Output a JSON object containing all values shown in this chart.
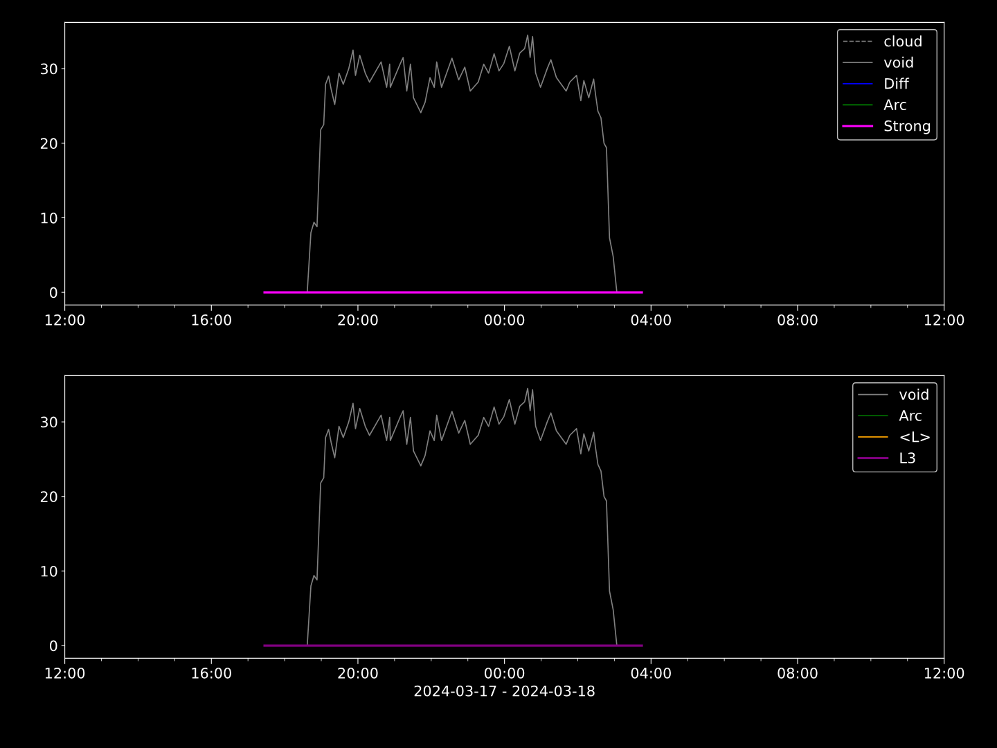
{
  "chart_data": [
    {
      "type": "line",
      "xlim": [
        "2024-03-17T12:00",
        "2024-03-18T12:00"
      ],
      "ylim": [
        -1.7,
        36.2
      ],
      "yticks": [
        0,
        10,
        20,
        30
      ],
      "xticks": [
        {
          "value": "2024-03-17T12:00",
          "label": "12:00"
        },
        {
          "value": "2024-03-17T13:00",
          "label": null
        },
        {
          "value": "2024-03-17T14:00",
          "label": null
        },
        {
          "value": "2024-03-17T15:00",
          "label": null
        },
        {
          "value": "2024-03-17T16:00",
          "label": "16:00"
        },
        {
          "value": "2024-03-17T17:00",
          "label": null
        },
        {
          "value": "2024-03-17T18:00",
          "label": null
        },
        {
          "value": "2024-03-17T19:00",
          "label": null
        },
        {
          "value": "2024-03-17T20:00",
          "label": "20:00"
        },
        {
          "value": "2024-03-17T21:00",
          "label": null
        },
        {
          "value": "2024-03-17T22:00",
          "label": null
        },
        {
          "value": "2024-03-17T23:00",
          "label": null
        },
        {
          "value": "2024-03-18T00:00",
          "label": "00:00"
        },
        {
          "value": "2024-03-18T01:00",
          "label": null
        },
        {
          "value": "2024-03-18T02:00",
          "label": null
        },
        {
          "value": "2024-03-18T03:00",
          "label": null
        },
        {
          "value": "2024-03-18T04:00",
          "label": "04:00"
        },
        {
          "value": "2024-03-18T05:00",
          "label": null
        },
        {
          "value": "2024-03-18T06:00",
          "label": null
        },
        {
          "value": "2024-03-18T07:00",
          "label": null
        },
        {
          "value": "2024-03-18T08:00",
          "label": "08:00"
        },
        {
          "value": "2024-03-18T09:00",
          "label": null
        },
        {
          "value": "2024-03-18T10:00",
          "label": null
        },
        {
          "value": "2024-03-18T11:00",
          "label": null
        },
        {
          "value": "2024-03-18T12:00",
          "label": "12:00"
        }
      ],
      "legend": "top right",
      "series": [
        {
          "name": "cloud",
          "color": "#808080",
          "line_style": "dashed"
        },
        {
          "name": "void",
          "color": "#808080",
          "x": [
            "2024-03-17T18:37",
            "2024-03-17T18:43",
            "2024-03-17T18:48",
            "2024-03-17T18:53",
            "2024-03-17T18:59",
            "2024-03-17T19:04",
            "2024-03-17T19:07",
            "2024-03-17T19:12",
            "2024-03-17T19:16",
            "2024-03-17T19:22",
            "2024-03-17T19:29",
            "2024-03-17T19:36",
            "2024-03-17T19:45",
            "2024-03-17T19:52",
            "2024-03-17T19:56",
            "2024-03-17T20:03",
            "2024-03-17T20:12",
            "2024-03-17T20:19",
            "2024-03-17T20:38",
            "2024-03-17T20:47",
            "2024-03-17T20:52",
            "2024-03-17T20:53",
            "2024-03-17T21:09",
            "2024-03-17T21:14",
            "2024-03-17T21:20",
            "2024-03-17T21:26",
            "2024-03-17T21:31",
            "2024-03-17T21:43",
            "2024-03-17T21:50",
            "2024-03-17T21:58",
            "2024-03-17T22:05",
            "2024-03-17T22:09",
            "2024-03-17T22:17",
            "2024-03-17T22:34",
            "2024-03-17T22:45",
            "2024-03-17T22:55",
            "2024-03-17T23:04",
            "2024-03-17T23:17",
            "2024-03-17T23:26",
            "2024-03-17T23:34",
            "2024-03-17T23:43",
            "2024-03-17T23:51",
            "2024-03-17T23:59",
            "2024-03-18T00:08",
            "2024-03-18T00:17",
            "2024-03-18T00:25",
            "2024-03-18T00:33",
            "2024-03-18T00:38",
            "2024-03-18T00:42",
            "2024-03-18T00:46",
            "2024-03-18T00:51",
            "2024-03-18T00:59",
            "2024-03-18T01:10",
            "2024-03-18T01:16",
            "2024-03-18T01:25",
            "2024-03-18T01:41",
            "2024-03-18T01:47",
            "2024-03-18T01:58",
            "2024-03-18T02:05",
            "2024-03-18T02:10",
            "2024-03-18T02:18",
            "2024-03-18T02:26",
            "2024-03-18T02:29",
            "2024-03-18T02:33",
            "2024-03-18T02:38",
            "2024-03-18T02:43",
            "2024-03-18T02:47",
            "2024-03-18T02:52",
            "2024-03-18T02:58",
            "2024-03-18T03:04"
          ],
          "values": [
            0,
            8.0,
            9.4,
            8.8,
            21.8,
            22.5,
            27.9,
            29.0,
            27.3,
            25.2,
            29.4,
            27.9,
            30.0,
            32.5,
            29.1,
            31.8,
            29.4,
            28.2,
            30.9,
            27.5,
            30.6,
            27.5,
            30.6,
            31.5,
            27.0,
            30.6,
            26.1,
            24.1,
            25.5,
            28.8,
            27.5,
            30.9,
            27.5,
            31.4,
            28.5,
            30.2,
            27.0,
            28.2,
            30.6,
            29.4,
            32.0,
            29.7,
            30.7,
            33.0,
            29.7,
            32.1,
            32.7,
            34.5,
            31.5,
            34.3,
            29.4,
            27.5,
            30.0,
            31.2,
            28.8,
            27.0,
            28.2,
            29.1,
            25.7,
            28.4,
            26.1,
            28.6,
            26.6,
            24.3,
            23.4,
            20.0,
            19.4,
            7.3,
            4.8,
            0
          ]
        },
        {
          "name": "Diff",
          "color": "#0000ff"
        },
        {
          "name": "Arc",
          "color": "#008000"
        },
        {
          "name": "Strong",
          "color": "#ff00ff",
          "x": [
            "2024-03-17T17:27",
            "2024-03-18T03:45"
          ],
          "values": [
            0,
            0
          ]
        }
      ]
    },
    {
      "type": "line",
      "xlim": [
        "2024-03-17T12:00",
        "2024-03-18T12:00"
      ],
      "ylim": [
        -1.7,
        36.2
      ],
      "yticks": [
        0,
        10,
        20,
        30
      ],
      "xlabel": "2024-03-17 - 2024-03-18",
      "xticks": [
        {
          "value": "2024-03-17T12:00",
          "label": "12:00"
        },
        {
          "value": "2024-03-17T13:00",
          "label": null
        },
        {
          "value": "2024-03-17T14:00",
          "label": null
        },
        {
          "value": "2024-03-17T15:00",
          "label": null
        },
        {
          "value": "2024-03-17T16:00",
          "label": "16:00"
        },
        {
          "value": "2024-03-17T17:00",
          "label": null
        },
        {
          "value": "2024-03-17T18:00",
          "label": null
        },
        {
          "value": "2024-03-17T19:00",
          "label": null
        },
        {
          "value": "2024-03-17T20:00",
          "label": "20:00"
        },
        {
          "value": "2024-03-17T21:00",
          "label": null
        },
        {
          "value": "2024-03-17T22:00",
          "label": null
        },
        {
          "value": "2024-03-17T23:00",
          "label": null
        },
        {
          "value": "2024-03-18T00:00",
          "label": "00:00"
        },
        {
          "value": "2024-03-18T01:00",
          "label": null
        },
        {
          "value": "2024-03-18T02:00",
          "label": null
        },
        {
          "value": "2024-03-18T03:00",
          "label": null
        },
        {
          "value": "2024-03-18T04:00",
          "label": "04:00"
        },
        {
          "value": "2024-03-18T05:00",
          "label": null
        },
        {
          "value": "2024-03-18T06:00",
          "label": null
        },
        {
          "value": "2024-03-18T07:00",
          "label": null
        },
        {
          "value": "2024-03-18T08:00",
          "label": "08:00"
        },
        {
          "value": "2024-03-18T09:00",
          "label": null
        },
        {
          "value": "2024-03-18T10:00",
          "label": null
        },
        {
          "value": "2024-03-18T11:00",
          "label": null
        },
        {
          "value": "2024-03-18T12:00",
          "label": "12:00"
        }
      ],
      "legend": "top right",
      "series": [
        {
          "name": "void",
          "color": "#808080",
          "x": [
            "2024-03-17T18:37",
            "2024-03-17T18:43",
            "2024-03-17T18:48",
            "2024-03-17T18:53",
            "2024-03-17T18:59",
            "2024-03-17T19:04",
            "2024-03-17T19:07",
            "2024-03-17T19:12",
            "2024-03-17T19:16",
            "2024-03-17T19:22",
            "2024-03-17T19:29",
            "2024-03-17T19:36",
            "2024-03-17T19:45",
            "2024-03-17T19:52",
            "2024-03-17T19:56",
            "2024-03-17T20:03",
            "2024-03-17T20:12",
            "2024-03-17T20:19",
            "2024-03-17T20:38",
            "2024-03-17T20:47",
            "2024-03-17T20:52",
            "2024-03-17T20:53",
            "2024-03-17T21:09",
            "2024-03-17T21:14",
            "2024-03-17T21:20",
            "2024-03-17T21:26",
            "2024-03-17T21:31",
            "2024-03-17T21:43",
            "2024-03-17T21:50",
            "2024-03-17T21:58",
            "2024-03-17T22:05",
            "2024-03-17T22:09",
            "2024-03-17T22:17",
            "2024-03-17T22:34",
            "2024-03-17T22:45",
            "2024-03-17T22:55",
            "2024-03-17T23:04",
            "2024-03-17T23:17",
            "2024-03-17T23:26",
            "2024-03-17T23:34",
            "2024-03-17T23:43",
            "2024-03-17T23:51",
            "2024-03-17T23:59",
            "2024-03-18T00:08",
            "2024-03-18T00:17",
            "2024-03-18T00:25",
            "2024-03-18T00:33",
            "2024-03-18T00:38",
            "2024-03-18T00:42",
            "2024-03-18T00:46",
            "2024-03-18T00:51",
            "2024-03-18T00:59",
            "2024-03-18T01:10",
            "2024-03-18T01:16",
            "2024-03-18T01:25",
            "2024-03-18T01:41",
            "2024-03-18T01:47",
            "2024-03-18T01:58",
            "2024-03-18T02:05",
            "2024-03-18T02:10",
            "2024-03-18T02:18",
            "2024-03-18T02:26",
            "2024-03-18T02:29",
            "2024-03-18T02:33",
            "2024-03-18T02:38",
            "2024-03-18T02:43",
            "2024-03-18T02:47",
            "2024-03-18T02:52",
            "2024-03-18T02:58",
            "2024-03-18T03:04"
          ],
          "values": [
            0,
            8.0,
            9.4,
            8.8,
            21.8,
            22.5,
            27.9,
            29.0,
            27.3,
            25.2,
            29.4,
            27.9,
            30.0,
            32.5,
            29.1,
            31.8,
            29.4,
            28.2,
            30.9,
            27.5,
            30.6,
            27.5,
            30.6,
            31.5,
            27.0,
            30.6,
            26.1,
            24.1,
            25.5,
            28.8,
            27.5,
            30.9,
            27.5,
            31.4,
            28.5,
            30.2,
            27.0,
            28.2,
            30.6,
            29.4,
            32.0,
            29.7,
            30.7,
            33.0,
            29.7,
            32.1,
            32.7,
            34.5,
            31.5,
            34.3,
            29.4,
            27.5,
            30.0,
            31.2,
            28.8,
            27.0,
            28.2,
            29.1,
            25.7,
            28.4,
            26.1,
            28.6,
            26.6,
            24.3,
            23.4,
            20.0,
            19.4,
            7.3,
            4.8,
            0
          ]
        },
        {
          "name": "Arc",
          "color": "#008000"
        },
        {
          "name": "<L>",
          "color": "#ffa500"
        },
        {
          "name": "L3",
          "color": "#800080",
          "x": [
            "2024-03-17T17:27",
            "2024-03-18T03:45"
          ],
          "values": [
            0,
            0
          ]
        }
      ]
    }
  ]
}
